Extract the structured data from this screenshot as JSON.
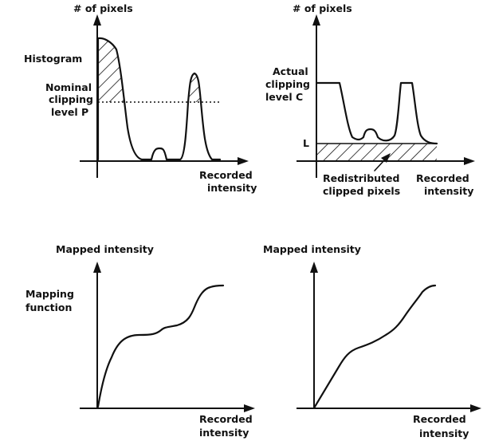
{
  "panels": {
    "top_left": {
      "y_axis_label": "# of pixels",
      "x_axis_label_line1": "Recorded",
      "x_axis_label_line2": "intensity",
      "curve_label": "Histogram",
      "clip_label_line1": "Nominal",
      "clip_label_line2": "clipping",
      "clip_label_line3": "level P"
    },
    "top_right": {
      "y_axis_label": "# of pixels",
      "x_axis_label_line1": "Recorded",
      "x_axis_label_line2": "intensity",
      "clip_label_line1": "Actual",
      "clip_label_line2": "clipping",
      "clip_label_line3": "level C",
      "base_label": "L",
      "redistributed_line1": "Redistributed",
      "redistributed_line2": "clipped pixels"
    },
    "bottom_left": {
      "y_axis_label": "Mapped intensity",
      "x_axis_label_line1": "Recorded",
      "x_axis_label_line2": "intensity",
      "curve_label_line1": "Mapping",
      "curve_label_line2": "function"
    },
    "bottom_right": {
      "y_axis_label": "Mapped intensity",
      "x_axis_label_line1": "Recorded",
      "x_axis_label_line2": "intensity"
    }
  },
  "colors": {
    "ink": "#111111",
    "background": "#ffffff"
  }
}
